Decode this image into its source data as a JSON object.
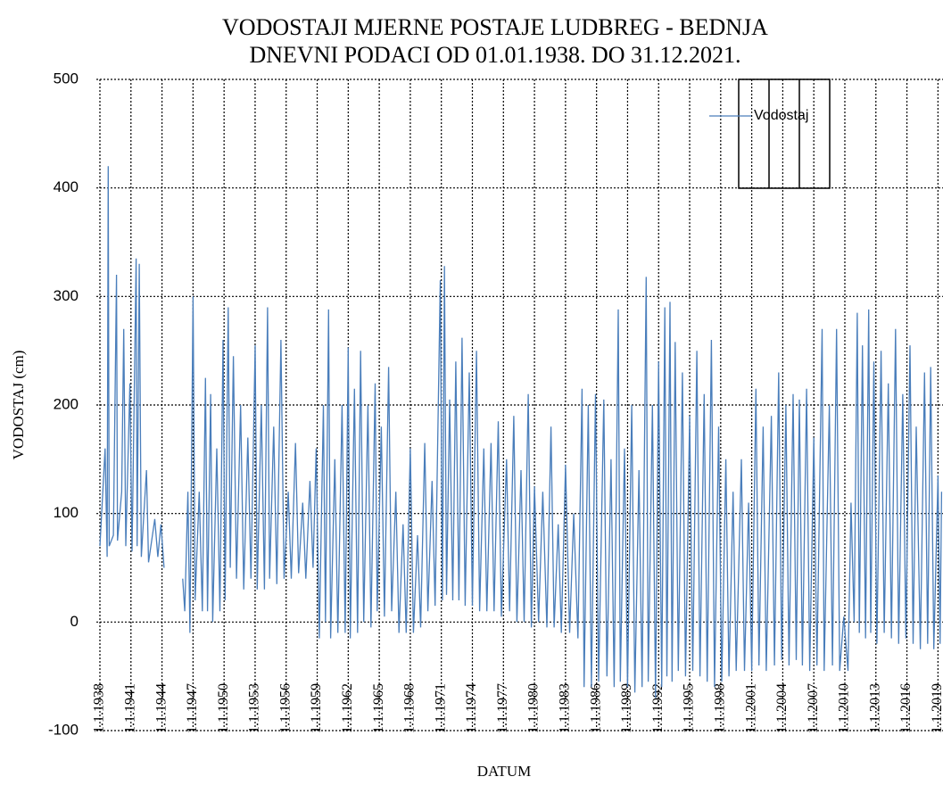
{
  "chart_data": {
    "type": "line",
    "title": "VODOSTAJI MJERNE POSTAJE LUDBREG - BEDNJA",
    "subtitle": "DNEVNI PODACI OD 01.01.1938. DO 31.12.2021.",
    "xlabel": "DATUM",
    "ylabel": "VODOSTAJ (cm)",
    "x": [
      1938.0,
      1938.5,
      1938.7,
      1938.8,
      1938.9,
      1939.3,
      1939.6,
      1939.7,
      1940.1,
      1940.3,
      1940.5,
      1940.9,
      1941.1,
      1941.5,
      1941.6,
      1941.8,
      1942.0,
      1942.5,
      1942.7,
      1943.3,
      1943.6,
      1943.9,
      1944.2,
      1945.0,
      1946.0,
      1946.2,
      1946.5,
      1946.7,
      1947.0,
      1947.2,
      1947.6,
      1947.9,
      1948.2,
      1948.4,
      1948.7,
      1948.9,
      1949.3,
      1949.6,
      1949.9,
      1950.1,
      1950.4,
      1950.6,
      1950.9,
      1951.2,
      1951.6,
      1951.9,
      1952.3,
      1952.6,
      1953.0,
      1953.2,
      1953.6,
      1953.9,
      1954.2,
      1954.4,
      1954.8,
      1955.1,
      1955.5,
      1955.8,
      1956.2,
      1956.5,
      1956.9,
      1957.2,
      1957.6,
      1957.9,
      1958.3,
      1958.6,
      1958.9,
      1959.2,
      1959.6,
      1959.8,
      1960.1,
      1960.3,
      1960.7,
      1961.0,
      1961.4,
      1961.7,
      1962.0,
      1962.2,
      1962.6,
      1962.9,
      1963.2,
      1963.5,
      1963.9,
      1964.2,
      1964.6,
      1964.8,
      1965.2,
      1965.5,
      1965.9,
      1966.2,
      1966.6,
      1966.9,
      1967.3,
      1967.6,
      1968.0,
      1968.3,
      1968.7,
      1969.0,
      1969.4,
      1969.7,
      1970.1,
      1970.4,
      1970.9,
      1971.1,
      1971.3,
      1971.5,
      1971.8,
      1972.1,
      1972.4,
      1972.7,
      1973.0,
      1973.3,
      1973.7,
      1974.0,
      1974.4,
      1974.7,
      1975.1,
      1975.4,
      1975.8,
      1976.1,
      1976.5,
      1976.8,
      1977.3,
      1977.6,
      1978.0,
      1978.3,
      1978.7,
      1979.0,
      1979.4,
      1979.7,
      1980.0,
      1980.4,
      1980.8,
      1981.2,
      1981.6,
      1981.9,
      1982.3,
      1982.6,
      1983.0,
      1983.4,
      1983.8,
      1984.2,
      1984.6,
      1984.8,
      1985.2,
      1985.5,
      1985.9,
      1986.2,
      1986.7,
      1987.0,
      1987.4,
      1987.7,
      1988.1,
      1988.3,
      1988.7,
      1989.0,
      1989.4,
      1989.7,
      1990.1,
      1990.4,
      1990.8,
      1991.0,
      1991.4,
      1991.7,
      1992.0,
      1992.3,
      1992.6,
      1992.8,
      1993.1,
      1993.3,
      1993.6,
      1993.9,
      1994.3,
      1994.6,
      1995.0,
      1995.3,
      1995.7,
      1996.0,
      1996.4,
      1996.7,
      1997.1,
      1997.4,
      1997.8,
      1998.1,
      1998.5,
      1998.8,
      1999.2,
      1999.5,
      2000.0,
      2000.3,
      2000.7,
      2001.0,
      2001.4,
      2001.7,
      2002.1,
      2002.4,
      2002.9,
      2003.2,
      2003.6,
      2003.9,
      2004.3,
      2004.6,
      2005.0,
      2005.3,
      2005.6,
      2005.9,
      2006.3,
      2006.6,
      2007.0,
      2007.3,
      2007.8,
      2008.0,
      2008.5,
      2008.8,
      2009.2,
      2009.5,
      2009.9,
      2010.3,
      2010.6,
      2010.9,
      2011.2,
      2011.4,
      2011.7,
      2012.0,
      2012.3,
      2012.5,
      2012.8,
      2013.1,
      2013.5,
      2013.8,
      2014.2,
      2014.5,
      2014.9,
      2015.2,
      2015.6,
      2015.9,
      2016.3,
      2016.6,
      2016.9,
      2017.3,
      2017.7,
      2018.0,
      2018.3,
      2018.6,
      2019.0,
      2019.2,
      2019.35
    ],
    "series": [
      {
        "name": "Vodostaj",
        "color": "#4a7ebb",
        "values": [
          70,
          160,
          60,
          420,
          70,
          80,
          320,
          75,
          120,
          270,
          70,
          220,
          65,
          335,
          70,
          330,
          60,
          140,
          55,
          95,
          60,
          90,
          50,
          null,
          40,
          10,
          120,
          -10,
          300,
          20,
          120,
          10,
          225,
          10,
          210,
          0,
          160,
          10,
          260,
          20,
          290,
          50,
          245,
          40,
          200,
          30,
          170,
          40,
          255,
          30,
          200,
          30,
          290,
          40,
          180,
          35,
          260,
          40,
          120,
          40,
          165,
          45,
          110,
          40,
          130,
          50,
          160,
          -15,
          200,
          0,
          288,
          -15,
          150,
          -10,
          200,
          -10,
          253,
          -15,
          215,
          -10,
          250,
          0,
          200,
          -5,
          220,
          10,
          180,
          5,
          235,
          10,
          120,
          -10,
          90,
          -10,
          160,
          -10,
          80,
          -5,
          165,
          10,
          130,
          15,
          315,
          20,
          328,
          25,
          205,
          20,
          240,
          20,
          262,
          15,
          230,
          15,
          250,
          10,
          160,
          10,
          165,
          10,
          185,
          5,
          150,
          10,
          190,
          0,
          140,
          0,
          210,
          -5,
          125,
          0,
          120,
          -5,
          180,
          -5,
          90,
          -10,
          145,
          -10,
          100,
          -15,
          215,
          -60,
          200,
          -60,
          210,
          -55,
          205,
          -50,
          150,
          -60,
          288,
          -55,
          160,
          -60,
          200,
          -65,
          140,
          -60,
          318,
          -55,
          200,
          -70,
          240,
          -60,
          290,
          -50,
          295,
          -55,
          258,
          -45,
          230,
          -50,
          190,
          -45,
          250,
          -50,
          210,
          -55,
          260,
          -60,
          180,
          -55,
          150,
          -50,
          120,
          -45,
          150,
          -45,
          110,
          -45,
          215,
          -40,
          180,
          -45,
          190,
          -40,
          230,
          -35,
          200,
          -40,
          210,
          -35,
          205,
          -40,
          215,
          -45,
          170,
          -40,
          270,
          -45,
          200,
          -40,
          270,
          -45,
          5,
          -45,
          110,
          0,
          285,
          -10,
          255,
          -15,
          288,
          -10,
          240,
          -20,
          250,
          -10,
          220,
          -15,
          270,
          -20,
          210,
          -15,
          255,
          -20,
          180,
          -25,
          230,
          -20,
          235,
          -25,
          135,
          -20,
          120
        ]
      }
    ],
    "xlim": [
      1938,
      2019.4
    ],
    "xticks": [
      {
        "value": 1938,
        "label": "1.1.1938"
      },
      {
        "value": 1941,
        "label": "1.1.1941"
      },
      {
        "value": 1944,
        "label": "1.1.1944"
      },
      {
        "value": 1947,
        "label": "1.1.1947"
      },
      {
        "value": 1950,
        "label": "1.1.1950"
      },
      {
        "value": 1953,
        "label": "1.1.1953"
      },
      {
        "value": 1956,
        "label": "1.1.1956"
      },
      {
        "value": 1959,
        "label": "1.1.1959"
      },
      {
        "value": 1962,
        "label": "1.1.1962"
      },
      {
        "value": 1965,
        "label": "1.1.1965"
      },
      {
        "value": 1968,
        "label": "1.1.1968"
      },
      {
        "value": 1971,
        "label": "1.1.1971"
      },
      {
        "value": 1974,
        "label": "1.1.1974"
      },
      {
        "value": 1977,
        "label": "1.1.1977"
      },
      {
        "value": 1980,
        "label": "1.1.1980"
      },
      {
        "value": 1983,
        "label": "1.1.1983"
      },
      {
        "value": 1986,
        "label": "1.1.1986"
      },
      {
        "value": 1989,
        "label": "1.1.1989"
      },
      {
        "value": 1992,
        "label": "1.1.1992"
      },
      {
        "value": 1995,
        "label": "1.1.1995"
      },
      {
        "value": 1998,
        "label": "1.1.1998"
      },
      {
        "value": 2001,
        "label": "1.1.2001"
      },
      {
        "value": 2004,
        "label": "1.1.2004"
      },
      {
        "value": 2007,
        "label": "1.1.2007"
      },
      {
        "value": 2010,
        "label": "1.1.2010"
      },
      {
        "value": 2013,
        "label": "1.1.2013"
      },
      {
        "value": 2016,
        "label": "1.1.2016"
      },
      {
        "value": 2019,
        "label": "1.1.2019"
      }
    ],
    "ylim": [
      -100,
      500
    ],
    "yticks": [
      -100,
      0,
      100,
      200,
      300,
      400,
      500
    ],
    "grid": true,
    "legend": "upper right"
  }
}
